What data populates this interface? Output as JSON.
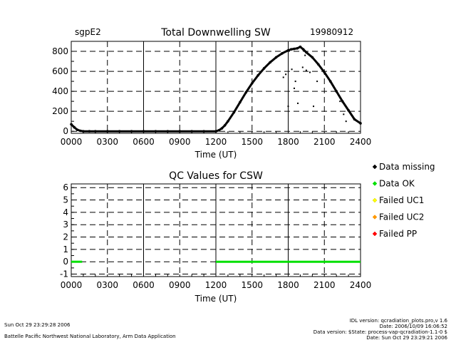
{
  "header": {
    "site": "sgpE2",
    "date": "19980912"
  },
  "chart_data": [
    {
      "type": "scatter",
      "title": "Total Downwelling SW",
      "xlabel": "Time (UT)",
      "ylabel": "",
      "x_ticks": [
        "0000",
        "0300",
        "0600",
        "0900",
        "1200",
        "1500",
        "1800",
        "2100",
        "2400"
      ],
      "y_ticks": [
        "0",
        "200",
        "400",
        "600",
        "800"
      ],
      "xlim": [
        0,
        24
      ],
      "ylim": [
        -20,
        900
      ],
      "grid": true,
      "series": [
        {
          "color": "#000000",
          "x": [
            0,
            0.25,
            0.5,
            0.75,
            1,
            1.5,
            2,
            3,
            4,
            5,
            6,
            7,
            8,
            9,
            10,
            11,
            12,
            12.25,
            12.5,
            12.75,
            13,
            13.5,
            14,
            14.5,
            15,
            15.5,
            16,
            16.5,
            17,
            17.5,
            18,
            18.25,
            18.5,
            18.75,
            19,
            19.25,
            19.5,
            20,
            20.5,
            21,
            21.5,
            22,
            22.5,
            23,
            23.5,
            24
          ],
          "y": [
            70,
            40,
            15,
            5,
            0,
            0,
            0,
            0,
            0,
            0,
            0,
            0,
            0,
            0,
            0,
            0,
            0,
            10,
            30,
            60,
            100,
            190,
            290,
            390,
            480,
            560,
            630,
            690,
            740,
            780,
            810,
            820,
            825,
            830,
            845,
            820,
            790,
            740,
            670,
            590,
            500,
            400,
            300,
            210,
            120,
            80
          ]
        },
        {
          "color": "#000000",
          "x": [
            17.6,
            17.8,
            18.0,
            18.3,
            18.6,
            19.2,
            19.5,
            19.8,
            20.1,
            18.5,
            18.8,
            19.4,
            20.4,
            22.3,
            22.6,
            22.8
          ],
          "y": [
            540,
            570,
            250,
            620,
            500,
            640,
            610,
            590,
            250,
            430,
            280,
            760,
            500,
            300,
            170,
            100
          ]
        }
      ]
    },
    {
      "type": "line",
      "title": "QC Values for CSW",
      "xlabel": "Time (UT)",
      "ylabel": "",
      "x_ticks": [
        "0000",
        "0300",
        "0600",
        "0900",
        "1200",
        "1500",
        "1800",
        "2100",
        "2400"
      ],
      "y_ticks": [
        "-1",
        "0",
        "1",
        "2",
        "3",
        "4",
        "5",
        "6"
      ],
      "xlim": [
        0,
        24
      ],
      "ylim": [
        -1.2,
        6.3
      ],
      "grid": true,
      "series": [
        {
          "name": "Data OK",
          "color": "#00e000",
          "x": [
            0,
            0.9
          ],
          "y": [
            0,
            0
          ]
        },
        {
          "name": "Data OK",
          "color": "#00e000",
          "x": [
            12,
            24
          ],
          "y": [
            0,
            0
          ]
        }
      ]
    }
  ],
  "legend": [
    {
      "label": "Data missing",
      "color": "#000000"
    },
    {
      "label": "Data OK",
      "color": "#00e000"
    },
    {
      "label": "Failed UC1",
      "color": "#ffff00"
    },
    {
      "label": "Failed UC2",
      "color": "#ff9900"
    },
    {
      "label": "Failed PP",
      "color": "#ff0000"
    }
  ],
  "footer": {
    "timestamp": "Sun Oct 29 23:29:28 2006",
    "lab": "Battelle Pacific Northwest National Laboratory, Arm Data Application",
    "idl_version": "IDL version: qcradiation_plots.pro,v 1.6",
    "idl_date": "Date: 2006/10/09 16:06:52",
    "data_version": "Data version: $State: process-vap-qcradiation-1.1-0 $",
    "data_date": "Date: Sun Oct 29 23:29:21 2006"
  }
}
